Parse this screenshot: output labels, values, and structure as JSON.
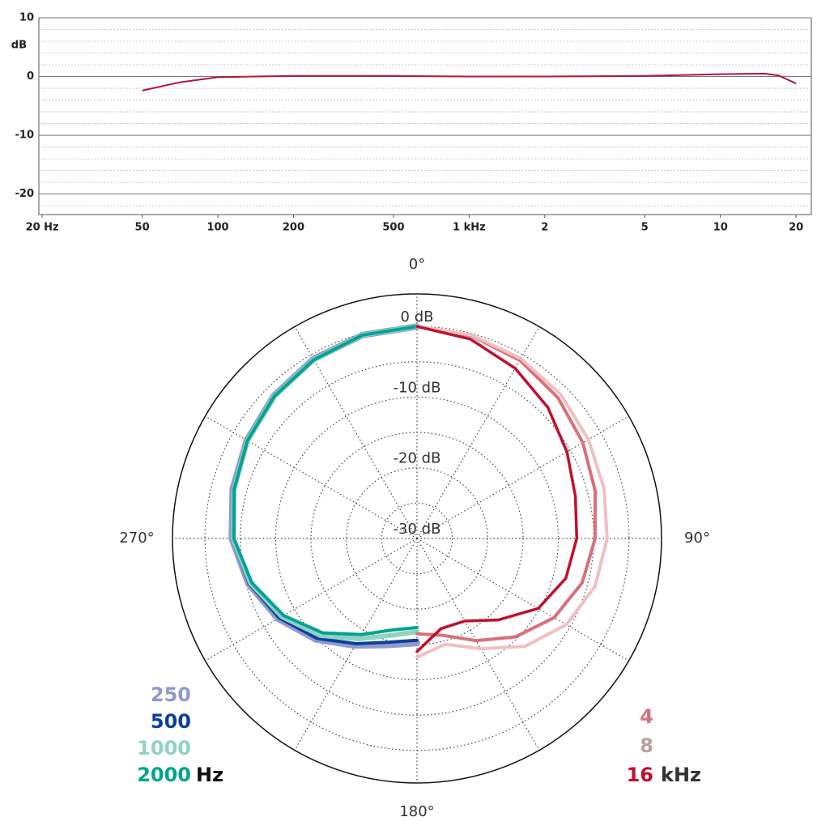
{
  "chart_data": [
    {
      "type": "line",
      "ylabel": "dB",
      "xscale": "log",
      "xlim": [
        19.4,
        23000
      ],
      "ylim": [
        -23.5,
        10
      ],
      "xticks": [
        {
          "value": 20,
          "label": "20 Hz"
        },
        50,
        100,
        200,
        500,
        {
          "value": 1000,
          "label": "1 kHz"
        },
        {
          "value": 2000,
          "label": "2"
        },
        {
          "value": 5000,
          "label": "5"
        },
        {
          "value": 10000,
          "label": "10"
        },
        {
          "value": 20000,
          "label": "20"
        }
      ],
      "yticks": [
        -20,
        -10,
        0,
        10
      ],
      "yminorticks": [
        -22,
        -18,
        -16,
        -14,
        -12,
        -8,
        -6,
        -4,
        -2,
        2,
        4,
        6,
        8
      ],
      "grid": true,
      "x": [
        50,
        70,
        100,
        200,
        500,
        1000,
        2000,
        5000,
        10000,
        15000,
        17000,
        20000
      ],
      "series": [
        {
          "name": null,
          "color": "#b0163a",
          "values": [
            -2.4,
            -1.0,
            -0.1,
            0.1,
            0.1,
            0,
            0,
            0.1,
            0.4,
            0.5,
            0.2,
            -1.2
          ]
        }
      ]
    },
    {
      "type": "polar",
      "rlim": [
        -30,
        4.6
      ],
      "rticks": [
        {
          "value": 0,
          "label": "0 dB"
        },
        {
          "value": -10,
          "label": "-10 dB"
        },
        {
          "value": -20,
          "label": "-20 dB"
        },
        {
          "value": -30,
          "label": "-30 dB"
        }
      ],
      "rminorticks": [
        -25,
        -15,
        -5
      ],
      "theta_ticks": [
        {
          "value": 0,
          "label": "0°"
        },
        {
          "value": 90,
          "label": "90°"
        },
        {
          "value": 180,
          "label": "180°"
        },
        {
          "value": 270,
          "label": "270°"
        }
      ],
      "theta_grid": [
        0,
        30,
        60,
        90,
        120,
        150,
        180,
        210,
        240,
        270,
        300,
        330
      ],
      "legend_units": {
        "left": "Hz",
        "right": "kHz"
      },
      "series": [
        {
          "name": "250",
          "color": "#8f9ad0",
          "legend": "left",
          "width": 8,
          "theta": [
            180,
            195,
            210,
            225,
            240,
            255,
            270,
            285,
            300,
            315,
            330,
            345,
            360
          ],
          "values": [
            -15.2,
            -14.4,
            -12.5,
            -9.8,
            -7.3,
            -5.3,
            -3.8,
            -3.0,
            -2.2,
            -1.4,
            -0.7,
            -0.2,
            0
          ]
        },
        {
          "name": "500",
          "color": "#0d3f99",
          "legend": "left",
          "width": 4,
          "theta": [
            180,
            195,
            210,
            225,
            240,
            255,
            270,
            285,
            300,
            315,
            330,
            345,
            360
          ],
          "values": [
            -15.6,
            -14.8,
            -12.8,
            -10.0,
            -7.5,
            -5.4,
            -3.9,
            -3.1,
            -2.3,
            -1.5,
            -0.8,
            -0.2,
            0
          ]
        },
        {
          "name": "1000",
          "color": "#8fd3c3",
          "legend": "left",
          "width": 6,
          "theta": [
            180,
            195,
            210,
            225,
            240,
            255,
            270,
            285,
            300,
            315,
            330,
            345,
            360
          ],
          "values": [
            -16.8,
            -15.8,
            -13.6,
            -10.6,
            -7.9,
            -5.6,
            -4.0,
            -3.2,
            -2.3,
            -1.5,
            -0.8,
            -0.2,
            0
          ]
        },
        {
          "name": "2000",
          "color": "#00a48f",
          "legend": "left",
          "width": 4,
          "theta": [
            180,
            195,
            210,
            225,
            240,
            255,
            270,
            285,
            300,
            315,
            330,
            345,
            360
          ],
          "values": [
            -17.4,
            -16.6,
            -14.3,
            -11.1,
            -8.2,
            -5.8,
            -4.1,
            -3.2,
            -2.3,
            -1.5,
            -0.8,
            -0.2,
            0
          ]
        },
        {
          "name": "4",
          "color": "#d9707a",
          "legend": "right",
          "width": 4,
          "theta": [
            0,
            15,
            30,
            45,
            60,
            75,
            90,
            105,
            120,
            135,
            150,
            165,
            180
          ],
          "values": [
            0,
            -0.3,
            -0.9,
            -1.8,
            -2.9,
            -3.9,
            -4.8,
            -5.8,
            -7.6,
            -10.3,
            -13.3,
            -15.8,
            -16.5
          ]
        },
        {
          "name": "8",
          "color": "#f0c0c0",
          "legend": "right",
          "width": 4,
          "text_color": "#b8a0a0",
          "theta": [
            0,
            15,
            30,
            45,
            60,
            75,
            90,
            105,
            120,
            135,
            150,
            165,
            180
          ],
          "values": [
            0,
            -0.2,
            -0.6,
            -1.2,
            -2.0,
            -2.6,
            -3.1,
            -3.9,
            -5.6,
            -8.4,
            -12.0,
            -14.5,
            -13.2
          ]
        },
        {
          "name": "16",
          "color": "#c0102e",
          "legend": "right",
          "width": 3.5,
          "theta": [
            0,
            15,
            30,
            45,
            60,
            75,
            90,
            105,
            120,
            135,
            150,
            165,
            180
          ],
          "values": [
            0,
            -0.8,
            -2.2,
            -3.8,
            -5.5,
            -6.8,
            -7.4,
            -8.2,
            -10.2,
            -13.7,
            -16.5,
            -16.8,
            -14.0
          ]
        }
      ]
    }
  ]
}
